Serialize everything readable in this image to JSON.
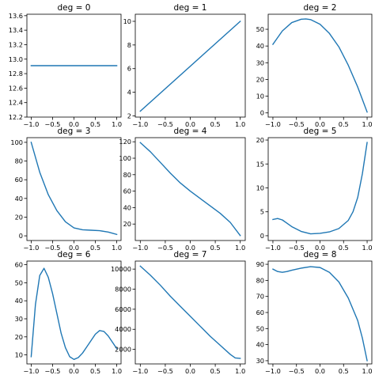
{
  "chart_data": [
    {
      "type": "line",
      "title": "deg = 0",
      "xlim": [
        -1.1,
        1.1
      ],
      "ylim": [
        12.2,
        13.62
      ],
      "xticks": [
        -1.0,
        -0.5,
        0.0,
        0.5,
        1.0
      ],
      "xtick_labels": [
        "−1.0",
        "−0.5",
        "0.0",
        "0.5",
        "1.0"
      ],
      "yticks": [
        12.2,
        12.4,
        12.6,
        12.8,
        13.0,
        13.2,
        13.4,
        13.6
      ],
      "ytick_labels": [
        "12.2",
        "12.4",
        "12.6",
        "12.8",
        "13.0",
        "13.2",
        "13.4",
        "13.6"
      ],
      "series": [
        {
          "color": "#1f77b4",
          "x": [
            -1.0,
            1.0
          ],
          "y": [
            12.91,
            12.91
          ]
        }
      ]
    },
    {
      "type": "line",
      "title": "deg = 1",
      "xlim": [
        -1.1,
        1.1
      ],
      "ylim": [
        1.9,
        10.6
      ],
      "xticks": [
        -1.0,
        -0.5,
        0.0,
        0.5,
        1.0
      ],
      "xtick_labels": [
        "−1.0",
        "−0.5",
        "0.0",
        "0.5",
        "1.0"
      ],
      "yticks": [
        2,
        4,
        6,
        8,
        10
      ],
      "ytick_labels": [
        "2",
        "4",
        "6",
        "8",
        "10"
      ],
      "series": [
        {
          "color": "#1f77b4",
          "x": [
            -1.0,
            1.0
          ],
          "y": [
            2.4,
            10.0
          ]
        }
      ]
    },
    {
      "type": "line",
      "title": "deg = 2",
      "xlim": [
        -1.1,
        1.1
      ],
      "ylim": [
        -2.5,
        59
      ],
      "xticks": [
        -1.0,
        -0.5,
        0.0,
        0.5,
        1.0
      ],
      "xtick_labels": [
        "−1.0",
        "−0.5",
        "0.0",
        "0.5",
        "1.0"
      ],
      "yticks": [
        0,
        10,
        20,
        30,
        40,
        50
      ],
      "ytick_labels": [
        "0",
        "10",
        "20",
        "30",
        "40",
        "50"
      ],
      "series": [
        {
          "color": "#1f77b4",
          "x": [
            -1.0,
            -0.8,
            -0.6,
            -0.4,
            -0.3,
            -0.2,
            0.0,
            0.2,
            0.4,
            0.6,
            0.8,
            1.0
          ],
          "y": [
            41.0,
            49.0,
            54.0,
            56.0,
            56.2,
            55.8,
            53.0,
            47.5,
            39.5,
            28.5,
            15.5,
            0.5
          ]
        }
      ]
    },
    {
      "type": "line",
      "title": "deg = 3",
      "xlim": [
        -1.1,
        1.1
      ],
      "ylim": [
        -5,
        105
      ],
      "xticks": [
        -1.0,
        -0.5,
        0.0,
        0.5,
        1.0
      ],
      "xtick_labels": [
        "−1.0",
        "−0.5",
        "0.0",
        "0.5",
        "1.0"
      ],
      "yticks": [
        0,
        20,
        40,
        60,
        80,
        100
      ],
      "ytick_labels": [
        "0",
        "20",
        "40",
        "60",
        "80",
        "100"
      ],
      "series": [
        {
          "color": "#1f77b4",
          "x": [
            -1.0,
            -0.8,
            -0.6,
            -0.4,
            -0.2,
            0.0,
            0.2,
            0.4,
            0.6,
            0.8,
            0.9,
            1.0
          ],
          "y": [
            100.0,
            68.0,
            44.0,
            27.0,
            15.0,
            8.5,
            6.5,
            6.0,
            5.5,
            4.0,
            2.8,
            1.5
          ]
        }
      ]
    },
    {
      "type": "line",
      "title": "deg = 4",
      "xlim": [
        -1.1,
        1.1
      ],
      "ylim": [
        0,
        125
      ],
      "xticks": [
        -1.0,
        -0.5,
        0.0,
        0.5,
        1.0
      ],
      "xtick_labels": [
        "−1.0",
        "−0.5",
        "0.0",
        "0.5",
        "1.0"
      ],
      "yticks": [
        20,
        40,
        60,
        80,
        100,
        120
      ],
      "ytick_labels": [
        "20",
        "40",
        "60",
        "80",
        "100",
        "120"
      ],
      "series": [
        {
          "color": "#1f77b4",
          "x": [
            -1.0,
            -0.8,
            -0.6,
            -0.4,
            -0.2,
            0.0,
            0.2,
            0.4,
            0.6,
            0.8,
            1.0
          ],
          "y": [
            119.0,
            108.0,
            95.0,
            82.0,
            70.0,
            60.0,
            51.0,
            42.0,
            33.0,
            22.0,
            6.0
          ]
        }
      ]
    },
    {
      "type": "line",
      "title": "deg = 5",
      "xlim": [
        -1.1,
        1.1
      ],
      "ylim": [
        -1,
        20.5
      ],
      "xticks": [
        -1.0,
        -0.5,
        0.0,
        0.5,
        1.0
      ],
      "xtick_labels": [
        "−1.0",
        "−0.5",
        "0.0",
        "0.5",
        "1.0"
      ],
      "yticks": [
        0,
        5,
        10,
        15,
        20
      ],
      "ytick_labels": [
        "0",
        "5",
        "10",
        "15",
        "20"
      ],
      "series": [
        {
          "color": "#1f77b4",
          "x": [
            -1.0,
            -0.9,
            -0.8,
            -0.7,
            -0.6,
            -0.4,
            -0.2,
            0.0,
            0.2,
            0.4,
            0.6,
            0.7,
            0.8,
            0.9,
            1.0
          ],
          "y": [
            3.4,
            3.6,
            3.3,
            2.6,
            1.9,
            0.9,
            0.4,
            0.5,
            0.8,
            1.5,
            3.2,
            5.0,
            8.0,
            13.0,
            19.5
          ]
        }
      ]
    },
    {
      "type": "line",
      "title": "deg = 6",
      "xlim": [
        -1.1,
        1.1
      ],
      "ylim": [
        5,
        62
      ],
      "xticks": [
        -1.0,
        -0.5,
        0.0,
        0.5,
        1.0
      ],
      "xtick_labels": [
        "−1.0",
        "−0.5",
        "0.0",
        "0.5",
        "1.0"
      ],
      "yticks": [
        10,
        20,
        30,
        40,
        50,
        60
      ],
      "ytick_labels": [
        "10",
        "20",
        "30",
        "40",
        "50",
        "60"
      ],
      "series": [
        {
          "color": "#1f77b4",
          "x": [
            -1.0,
            -0.9,
            -0.8,
            -0.7,
            -0.6,
            -0.5,
            -0.4,
            -0.3,
            -0.2,
            -0.1,
            0.0,
            0.1,
            0.2,
            0.3,
            0.4,
            0.5,
            0.6,
            0.7,
            0.8,
            0.9,
            1.0
          ],
          "y": [
            9.0,
            38.0,
            54.0,
            58.0,
            53.0,
            44.0,
            33.0,
            22.0,
            14.0,
            9.0,
            7.5,
            8.5,
            11.0,
            14.5,
            18.0,
            21.5,
            23.5,
            23.0,
            20.5,
            17.0,
            13.5
          ]
        }
      ]
    },
    {
      "type": "line",
      "title": "deg = 7",
      "xlim": [
        -1.1,
        1.1
      ],
      "ylim": [
        550,
        10800
      ],
      "xticks": [
        -1.0,
        -0.5,
        0.0,
        0.5,
        1.0
      ],
      "xtick_labels": [
        "−1.0",
        "−0.5",
        "0.0",
        "0.5",
        "1.0"
      ],
      "yticks": [
        2000,
        4000,
        6000,
        8000,
        10000
      ],
      "ytick_labels": [
        "2000",
        "4000",
        "6000",
        "8000",
        "10000"
      ],
      "series": [
        {
          "color": "#1f77b4",
          "x": [
            -1.0,
            -0.8,
            -0.6,
            -0.4,
            -0.2,
            0.0,
            0.2,
            0.4,
            0.6,
            0.8,
            0.9,
            1.0
          ],
          "y": [
            10300.0,
            9400.0,
            8400.0,
            7300.0,
            6300.0,
            5300.0,
            4300.0,
            3300.0,
            2400.0,
            1500.0,
            1150.0,
            1100.0
          ]
        }
      ]
    },
    {
      "type": "line",
      "title": "deg = 8",
      "xlim": [
        -1.1,
        1.1
      ],
      "ylim": [
        28,
        92
      ],
      "xticks": [
        -1.0,
        -0.5,
        0.0,
        0.5,
        1.0
      ],
      "xtick_labels": [
        "−1.0",
        "−0.5",
        "0.0",
        "0.5",
        "1.0"
      ],
      "yticks": [
        30,
        40,
        50,
        60,
        70,
        80,
        90
      ],
      "ytick_labels": [
        "30",
        "40",
        "50",
        "60",
        "70",
        "80",
        "90"
      ],
      "series": [
        {
          "color": "#1f77b4",
          "x": [
            -1.0,
            -0.9,
            -0.8,
            -0.7,
            -0.6,
            -0.4,
            -0.2,
            0.0,
            0.2,
            0.4,
            0.6,
            0.8,
            0.9,
            1.0
          ],
          "y": [
            87.0,
            85.5,
            85.0,
            85.5,
            86.3,
            87.6,
            88.5,
            88.0,
            85.0,
            79.0,
            69.0,
            55.0,
            44.0,
            30.0
          ]
        }
      ]
    }
  ]
}
